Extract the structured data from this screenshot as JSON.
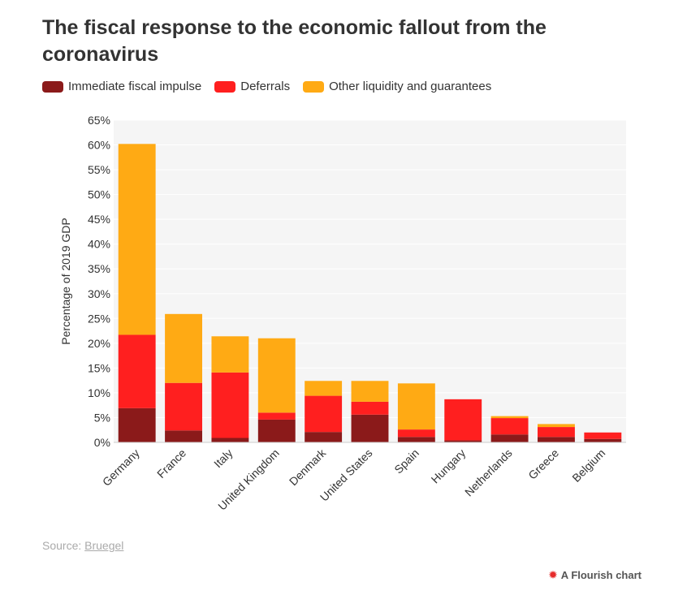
{
  "title": "The fiscal response to the economic fallout from the coronavirus",
  "legend": [
    {
      "label": "Immediate fiscal impulse",
      "color": "#8b1a1a"
    },
    {
      "label": "Deferrals",
      "color": "#ff1f1f"
    },
    {
      "label": "Other liquidity and guarantees",
      "color": "#ffaa14"
    }
  ],
  "source": {
    "prefix": "Source:",
    "link": "Bruegel"
  },
  "credit": {
    "icon": "flourish-icon",
    "label": "A Flourish chart"
  },
  "chart_data": {
    "type": "bar",
    "stacked": true,
    "title": "The fiscal response to the economic fallout from the coronavirus",
    "xlabel": "",
    "ylabel": "Percentage of 2019 GDP",
    "ylim": [
      0,
      65
    ],
    "yticks": [
      0,
      5,
      10,
      15,
      20,
      25,
      30,
      35,
      40,
      45,
      50,
      55,
      60,
      65
    ],
    "ytick_labels": [
      "0%",
      "5%",
      "10%",
      "15%",
      "20%",
      "25%",
      "30%",
      "35%",
      "40%",
      "45%",
      "50%",
      "55%",
      "60%",
      "65%"
    ],
    "grid": true,
    "legend_position": "top-left",
    "categories": [
      "Germany",
      "France",
      "Italy",
      "United Kingdom",
      "Denmark",
      "United States",
      "Spain",
      "Hungary",
      "Netherlands",
      "Greece",
      "Belgium"
    ],
    "series": [
      {
        "name": "Immediate fiscal impulse",
        "color": "#8b1a1a",
        "values": [
          6.9,
          2.4,
          0.9,
          4.6,
          2.1,
          5.6,
          1.1,
          0.4,
          1.6,
          1.1,
          0.7
        ]
      },
      {
        "name": "Deferrals",
        "color": "#ff1f1f",
        "values": [
          14.8,
          9.6,
          13.2,
          1.4,
          7.3,
          2.6,
          1.5,
          8.3,
          3.3,
          2.0,
          1.3
        ]
      },
      {
        "name": "Other liquidity and guarantees",
        "color": "#ffaa14",
        "values": [
          38.5,
          13.9,
          7.3,
          15.0,
          3.0,
          4.2,
          9.3,
          0.0,
          0.4,
          0.6,
          0.0
        ]
      }
    ]
  }
}
